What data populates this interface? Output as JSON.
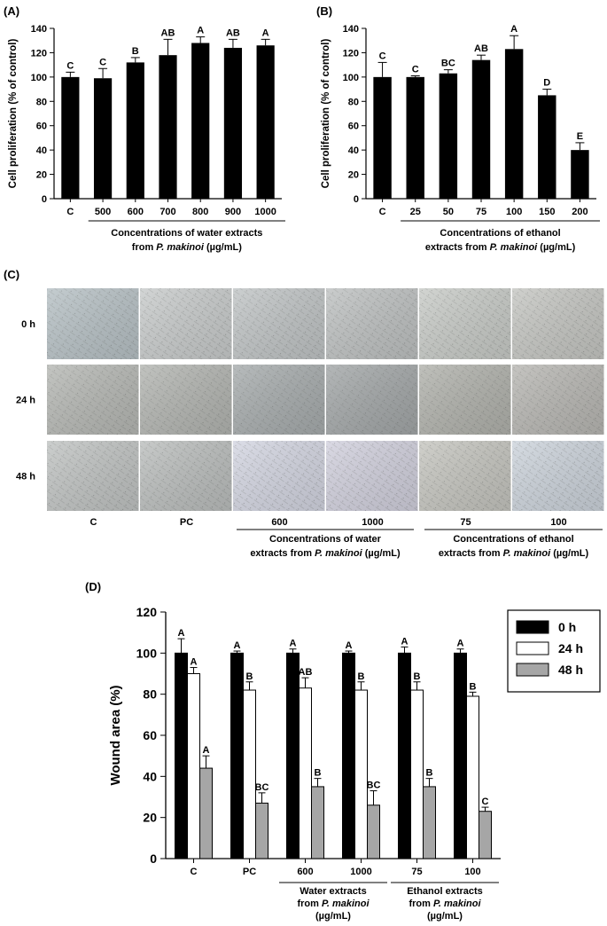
{
  "chart_data": [
    {
      "panel": "(A)",
      "type": "bar",
      "title": "",
      "ylabel": "Cell proliferation (% of control)",
      "xlabel_line1": "Concentrations of water extracts",
      "xlabel_line2_prefix": "from ",
      "xlabel_line2_species": "P. makinoi",
      "xlabel_line2_suffix": " (µg/mL)",
      "categories": [
        "C",
        "500",
        "600",
        "700",
        "800",
        "900",
        "1000"
      ],
      "values": [
        100,
        99,
        112,
        118,
        128,
        124,
        126
      ],
      "errors": [
        4,
        8,
        4,
        13,
        5,
        7,
        5
      ],
      "letters": [
        "C",
        "C",
        "B",
        "AB",
        "A",
        "AB",
        "A"
      ],
      "ylim": [
        0,
        140
      ],
      "yticks": [
        "0",
        "20",
        "40",
        "60",
        "80",
        "100",
        "120",
        "140"
      ],
      "bar_color": "#000000"
    },
    {
      "panel": "(B)",
      "type": "bar",
      "title": "",
      "ylabel": "Cell proliferation (% of control)",
      "xlabel_line1": "Concentrations of ethanol",
      "xlabel_line2_prefix": "extracts from ",
      "xlabel_line2_species": "P. makinoi",
      "xlabel_line2_suffix": " (µg/mL)",
      "categories": [
        "C",
        "25",
        "50",
        "75",
        "100",
        "150",
        "200"
      ],
      "values": [
        100,
        100,
        103,
        114,
        123,
        85,
        40
      ],
      "errors": [
        12,
        1,
        3,
        4,
        11,
        5,
        6
      ],
      "letters": [
        "C",
        "C",
        "BC",
        "AB",
        "A",
        "D",
        "E"
      ],
      "ylim": [
        0,
        140
      ],
      "yticks": [
        "0",
        "20",
        "40",
        "60",
        "80",
        "100",
        "120",
        "140"
      ],
      "bar_color": "#000000"
    },
    {
      "panel": "(D)",
      "type": "bar",
      "title": "",
      "ylabel": "Wound area (%)",
      "categories": [
        "C",
        "PC",
        "600",
        "1000",
        "75",
        "100"
      ],
      "series": [
        {
          "name": "0 h",
          "color": "#000000",
          "values": [
            100,
            100,
            100,
            100,
            100,
            100
          ],
          "errors": [
            7,
            1,
            2,
            1,
            3,
            2
          ],
          "letters": [
            "A",
            "A",
            "A",
            "A",
            "A",
            "A"
          ]
        },
        {
          "name": "24 h",
          "color": "#ffffff",
          "values": [
            90,
            82,
            83,
            82,
            82,
            79
          ],
          "errors": [
            3,
            4,
            5,
            4,
            4,
            2
          ],
          "letters": [
            "A",
            "B",
            "AB",
            "B",
            "B",
            "B"
          ]
        },
        {
          "name": "48 h",
          "color": "#a6a6a6",
          "values": [
            44,
            27,
            35,
            26,
            35,
            23
          ],
          "errors": [
            6,
            5,
            4,
            7,
            4,
            2
          ],
          "letters": [
            "A",
            "BC",
            "B",
            "BC",
            "B",
            "C"
          ]
        }
      ],
      "ylim": [
        0,
        120
      ],
      "yticks": [
        "0",
        "20",
        "40",
        "60",
        "80",
        "100",
        "120"
      ],
      "legend_position": "top-right",
      "groups": [
        {
          "line1": "Water extracts",
          "line2_prefix": "from ",
          "line2_species": "P. makinoi",
          "line3": "(µg/mL)"
        },
        {
          "line1": "Ethanol extracts",
          "line2_prefix": "from ",
          "line2_species": "P. makinoi",
          "line3": "(µg/mL)"
        }
      ]
    }
  ],
  "panel_c": {
    "label": "(C)",
    "row_labels": [
      "0 h",
      "24 h",
      "48 h"
    ],
    "column_labels": [
      "C",
      "PC",
      "600",
      "1000",
      "75",
      "100"
    ],
    "group_water": {
      "line1": "Concentrations of water",
      "line2_prefix": "extracts from ",
      "line2_species": "P. makinoi",
      "line2_suffix": " (µg/mL)"
    },
    "group_ethanol": {
      "line1": "Concentrations of ethanol",
      "line2_prefix": "extracts from ",
      "line2_species": "P. makinoi",
      "line2_suffix": " (µg/mL)"
    },
    "tile_tones": [
      [
        "#b8c2c6",
        "#c9cccc",
        "#c1c5c6",
        "#bfc2c2",
        "#c9ccc8",
        "#c6c7c3"
      ],
      [
        "#b7b9b5",
        "#b4b6b2",
        "#a8adae",
        "#a4a8a9",
        "#b2b3ad",
        "#b9b8b4"
      ],
      [
        "#c1c4c3",
        "#bcbfbe",
        "#d4d6e2",
        "#d2d1de",
        "#c6c6c0",
        "#cdd4dc"
      ]
    ]
  }
}
